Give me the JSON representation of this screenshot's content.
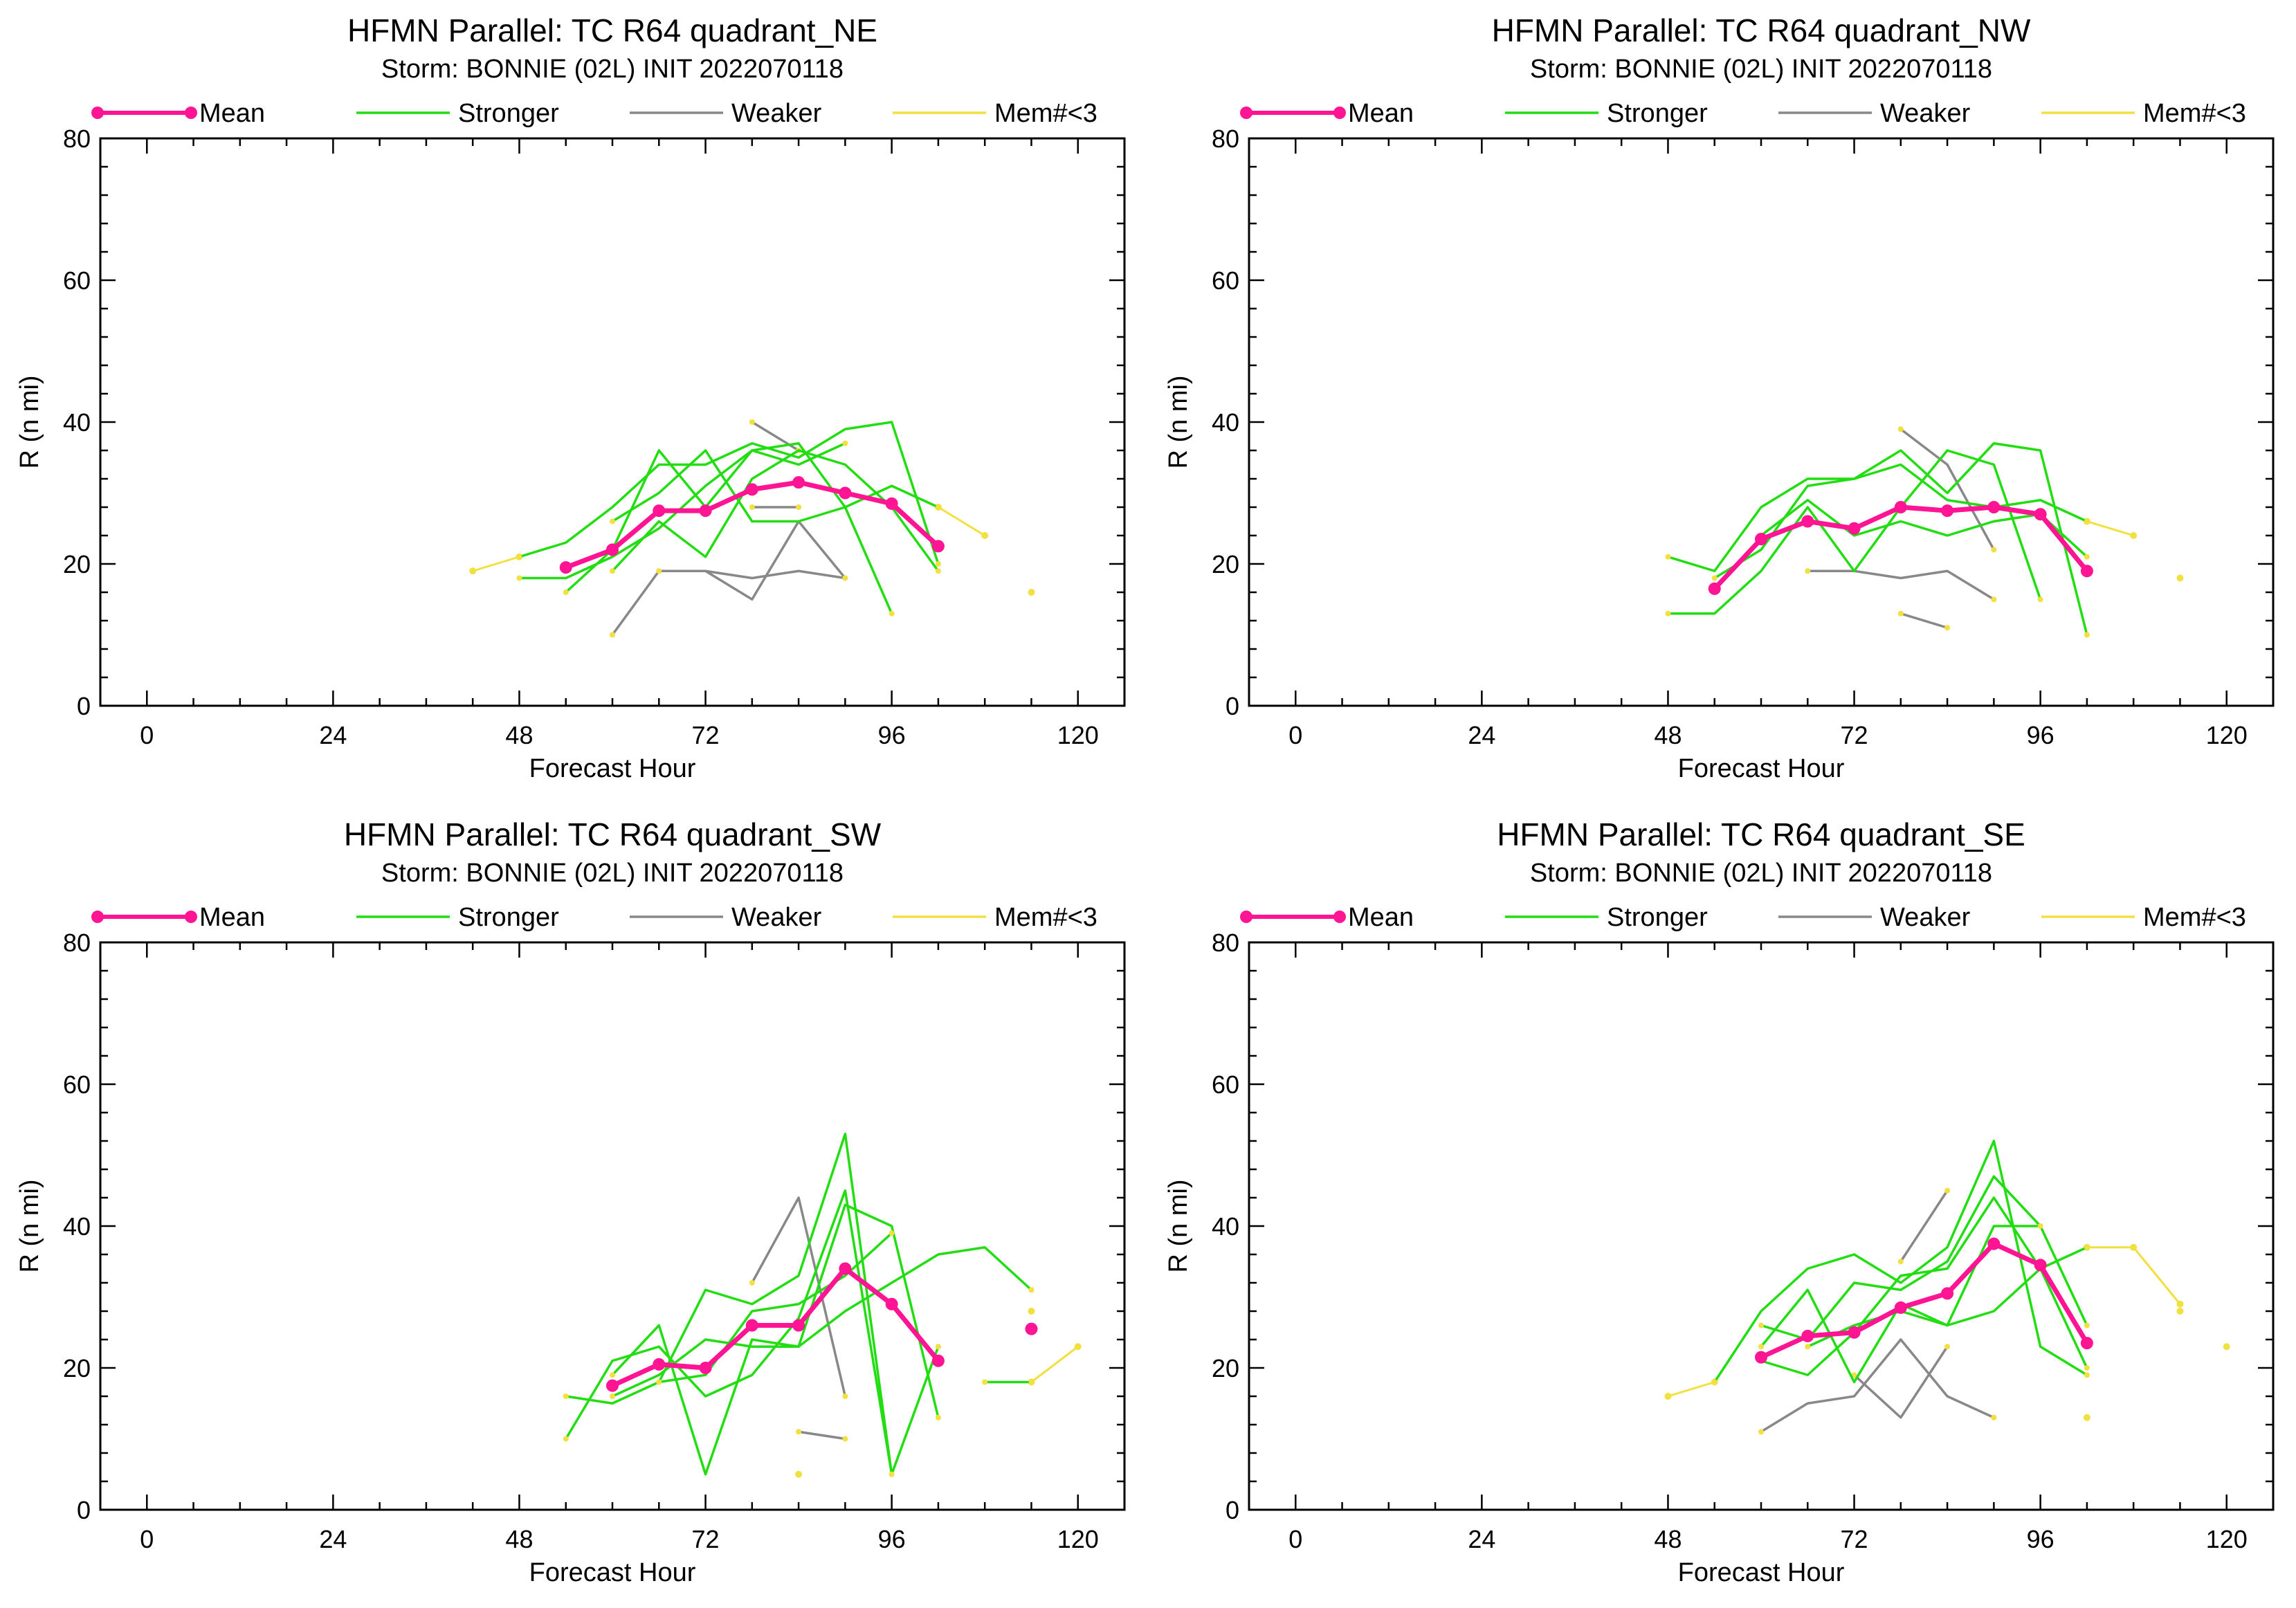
{
  "colors": {
    "mean": "#ff1493",
    "stronger": "#22dd11",
    "weaker": "#888888",
    "few_members": "#f0e040",
    "axis": "#000000"
  },
  "legend_labels": {
    "mean": "Mean",
    "stronger": "Stronger",
    "weaker": "Weaker",
    "few_members": "Mem#<3"
  },
  "chart_data": [
    {
      "type": "line",
      "title": "HFMN Parallel: TC  R64 quadrant_NE",
      "subtitle": "Storm: BONNIE (02L) INIT 2022070118",
      "xlabel": "Forecast Hour",
      "ylabel": "R (n mi)",
      "xlim": [
        -6,
        126
      ],
      "ylim": [
        0,
        80
      ],
      "xticks": [
        0,
        24,
        48,
        72,
        96,
        120
      ],
      "yticks": [
        0,
        20,
        40,
        60,
        80
      ],
      "grid": false,
      "legend_position": "top",
      "series": [
        {
          "kind": "mean",
          "x": [
            54,
            60,
            66,
            72,
            78,
            84,
            90,
            96,
            102
          ],
          "y": [
            19.5,
            22,
            27.5,
            27.5,
            30.5,
            31.5,
            30,
            28.5,
            22.5
          ]
        },
        {
          "kind": "stronger",
          "x": [
            48,
            54,
            60,
            66,
            72,
            78,
            84,
            90,
            96,
            102
          ],
          "y": [
            21,
            23,
            28,
            34,
            34,
            37,
            35,
            39,
            40,
            20
          ]
        },
        {
          "kind": "stronger",
          "x": [
            48,
            54,
            60,
            66,
            72,
            78,
            84,
            90,
            96
          ],
          "y": [
            18,
            18,
            21,
            25,
            31,
            36,
            37,
            28,
            13
          ]
        },
        {
          "kind": "stronger",
          "x": [
            54,
            60,
            66,
            72,
            78,
            84,
            90
          ],
          "y": [
            16,
            22,
            36,
            28,
            36,
            34,
            37
          ]
        },
        {
          "kind": "stronger",
          "x": [
            60,
            66,
            72,
            78,
            84,
            90,
            96,
            102
          ],
          "y": [
            26,
            30,
            36,
            26,
            26,
            28,
            31,
            28
          ]
        },
        {
          "kind": "stronger",
          "x": [
            60,
            66,
            72,
            78,
            84,
            90,
            96,
            102
          ],
          "y": [
            19,
            26,
            21,
            32,
            36,
            34,
            28,
            19
          ]
        },
        {
          "kind": "weaker",
          "x": [
            60,
            66,
            72,
            78,
            84,
            90
          ],
          "y": [
            10,
            19,
            19,
            15,
            26,
            18
          ]
        },
        {
          "kind": "weaker",
          "x": [
            66,
            72,
            78,
            84,
            90
          ],
          "y": [
            19,
            19,
            18,
            19,
            18
          ]
        },
        {
          "kind": "weaker",
          "x": [
            78,
            84
          ],
          "y": [
            40,
            36
          ]
        },
        {
          "kind": "weaker",
          "x": [
            78,
            84
          ],
          "y": [
            28,
            28
          ]
        },
        {
          "kind": "few_members",
          "x": [
            42,
            48
          ],
          "y": [
            19,
            21
          ]
        },
        {
          "kind": "few_members",
          "x": [
            102,
            108
          ],
          "y": [
            28,
            24
          ]
        },
        {
          "kind": "few_members",
          "x": [
            114
          ],
          "y": [
            16
          ]
        }
      ]
    },
    {
      "type": "line",
      "title": "HFMN Parallel: TC  R64 quadrant_NW",
      "subtitle": "Storm: BONNIE (02L) INIT 2022070118",
      "xlabel": "Forecast Hour",
      "ylabel": "R (n mi)",
      "xlim": [
        -6,
        126
      ],
      "ylim": [
        0,
        80
      ],
      "xticks": [
        0,
        24,
        48,
        72,
        96,
        120
      ],
      "yticks": [
        0,
        20,
        40,
        60,
        80
      ],
      "grid": false,
      "legend_position": "top",
      "series": [
        {
          "kind": "mean",
          "x": [
            54,
            60,
            66,
            72,
            78,
            84,
            90,
            96,
            102
          ],
          "y": [
            16.5,
            23.5,
            26,
            25,
            28,
            27.5,
            28,
            27,
            19
          ]
        },
        {
          "kind": "stronger",
          "x": [
            48,
            54,
            60,
            66,
            72,
            78,
            84,
            90,
            96,
            102
          ],
          "y": [
            21,
            19,
            28,
            32,
            32,
            36,
            30,
            37,
            36,
            10
          ]
        },
        {
          "kind": "stronger",
          "x": [
            48,
            54,
            60,
            66,
            72,
            78,
            84,
            90,
            96
          ],
          "y": [
            13,
            13,
            19,
            28,
            19,
            28,
            36,
            34,
            15
          ]
        },
        {
          "kind": "stronger",
          "x": [
            54,
            60,
            66,
            72,
            78,
            84,
            90,
            96,
            102
          ],
          "y": [
            18,
            22,
            31,
            32,
            34,
            29,
            28,
            29,
            26
          ]
        },
        {
          "kind": "stronger",
          "x": [
            60,
            66,
            72,
            78,
            84,
            90,
            96,
            102
          ],
          "y": [
            24,
            29,
            24,
            26,
            24,
            26,
            27,
            21
          ]
        },
        {
          "kind": "weaker",
          "x": [
            66,
            72,
            78,
            84,
            90
          ],
          "y": [
            19,
            19,
            18,
            19,
            15
          ]
        },
        {
          "kind": "weaker",
          "x": [
            78,
            84
          ],
          "y": [
            13,
            11
          ]
        },
        {
          "kind": "weaker",
          "x": [
            78,
            84,
            90
          ],
          "y": [
            39,
            34,
            22
          ]
        },
        {
          "kind": "few_members",
          "x": [
            102,
            108
          ],
          "y": [
            26,
            24
          ]
        },
        {
          "kind": "few_members",
          "x": [
            114
          ],
          "y": [
            18
          ]
        }
      ]
    },
    {
      "type": "line",
      "title": "HFMN Parallel: TC  R64 quadrant_SW",
      "subtitle": "Storm: BONNIE (02L) INIT 2022070118",
      "xlabel": "Forecast Hour",
      "ylabel": "R (n mi)",
      "xlim": [
        -6,
        126
      ],
      "ylim": [
        0,
        80
      ],
      "xticks": [
        0,
        24,
        48,
        72,
        96,
        120
      ],
      "yticks": [
        0,
        20,
        40,
        60,
        80
      ],
      "grid": false,
      "legend_position": "top",
      "series": [
        {
          "kind": "mean",
          "x": [
            60,
            66,
            72,
            78,
            84,
            90,
            96,
            102
          ],
          "y": [
            17.5,
            20.5,
            20,
            26,
            26,
            34,
            29,
            21
          ]
        },
        {
          "kind": "stronger",
          "x": [
            54,
            60,
            66,
            72,
            78,
            84,
            90,
            96,
            102
          ],
          "y": [
            16,
            15,
            18,
            31,
            29,
            33,
            53,
            5,
            23
          ]
        },
        {
          "kind": "stronger",
          "x": [
            54,
            60,
            66,
            72,
            78,
            84,
            90,
            96
          ],
          "y": [
            10,
            21,
            23,
            16,
            19,
            27,
            45,
            5
          ]
        },
        {
          "kind": "stronger",
          "x": [
            60,
            66,
            72,
            78,
            84,
            90,
            96,
            102
          ],
          "y": [
            19,
            26,
            5,
            24,
            23,
            43,
            40,
            13
          ]
        },
        {
          "kind": "stronger",
          "x": [
            60,
            66,
            72,
            78,
            84,
            90,
            96,
            102,
            108,
            114
          ],
          "y": [
            16,
            19,
            24,
            23,
            23,
            28,
            32,
            36,
            37,
            31
          ]
        },
        {
          "kind": "stronger",
          "x": [
            66,
            72,
            78,
            84,
            90,
            96
          ],
          "y": [
            18,
            19,
            28,
            29,
            33,
            39
          ]
        },
        {
          "kind": "stronger",
          "x": [
            108,
            114
          ],
          "y": [
            18,
            18
          ]
        },
        {
          "kind": "weaker",
          "x": [
            78,
            84,
            90
          ],
          "y": [
            32,
            44,
            16
          ]
        },
        {
          "kind": "weaker",
          "x": [
            84,
            90
          ],
          "y": [
            11,
            10
          ]
        },
        {
          "kind": "few_members",
          "x": [
            114,
            120
          ],
          "y": [
            18,
            23
          ]
        },
        {
          "kind": "few_members",
          "x": [
            114
          ],
          "y": [
            28
          ]
        },
        {
          "kind": "few_members",
          "x": [
            84
          ],
          "y": [
            5
          ]
        },
        {
          "kind": "mean",
          "x": [
            114
          ],
          "y": [
            25.5
          ]
        }
      ]
    },
    {
      "type": "line",
      "title": "HFMN Parallel: TC  R64 quadrant_SE",
      "subtitle": "Storm: BONNIE (02L) INIT 2022070118",
      "xlabel": "Forecast Hour",
      "ylabel": "R (n mi)",
      "xlim": [
        -6,
        126
      ],
      "ylim": [
        0,
        80
      ],
      "xticks": [
        0,
        24,
        48,
        72,
        96,
        120
      ],
      "yticks": [
        0,
        20,
        40,
        60,
        80
      ],
      "grid": false,
      "legend_position": "top",
      "series": [
        {
          "kind": "mean",
          "x": [
            60,
            66,
            72,
            78,
            84,
            90,
            96,
            102
          ],
          "y": [
            21.5,
            24.5,
            25,
            28.5,
            30.5,
            37.5,
            34.5,
            23.5
          ]
        },
        {
          "kind": "stronger",
          "x": [
            54,
            60,
            66,
            72,
            78,
            84,
            90,
            96,
            102
          ],
          "y": [
            18,
            28,
            34,
            36,
            32,
            37,
            52,
            23,
            19
          ]
        },
        {
          "kind": "stronger",
          "x": [
            60,
            66,
            72,
            78,
            84,
            90,
            96,
            102
          ],
          "y": [
            26,
            24,
            32,
            31,
            35,
            47,
            40,
            26
          ]
        },
        {
          "kind": "stronger",
          "x": [
            60,
            66,
            72,
            78,
            84,
            90,
            96
          ],
          "y": [
            23,
            31,
            18,
            29,
            26,
            40,
            40
          ]
        },
        {
          "kind": "stronger",
          "x": [
            60,
            66,
            72,
            78,
            84,
            90,
            96,
            102
          ],
          "y": [
            21,
            19,
            25,
            33,
            34,
            44,
            34,
            20
          ]
        },
        {
          "kind": "stronger",
          "x": [
            66,
            72,
            78,
            84,
            90,
            96,
            102
          ],
          "y": [
            23,
            26,
            28,
            26,
            28,
            34,
            37
          ]
        },
        {
          "kind": "weaker",
          "x": [
            60,
            66,
            72,
            78,
            84,
            90
          ],
          "y": [
            11,
            15,
            16,
            24,
            16,
            13
          ]
        },
        {
          "kind": "weaker",
          "x": [
            72,
            78,
            84
          ],
          "y": [
            19,
            13,
            23
          ]
        },
        {
          "kind": "weaker",
          "x": [
            78,
            84
          ],
          "y": [
            35,
            45
          ]
        },
        {
          "kind": "few_members",
          "x": [
            48,
            54
          ],
          "y": [
            16,
            18
          ]
        },
        {
          "kind": "few_members",
          "x": [
            102,
            108,
            114
          ],
          "y": [
            37,
            37,
            29
          ]
        },
        {
          "kind": "few_members",
          "x": [
            114
          ],
          "y": [
            28
          ]
        },
        {
          "kind": "few_members",
          "x": [
            102
          ],
          "y": [
            13
          ]
        },
        {
          "kind": "few_members",
          "x": [
            120
          ],
          "y": [
            23
          ]
        }
      ]
    }
  ]
}
